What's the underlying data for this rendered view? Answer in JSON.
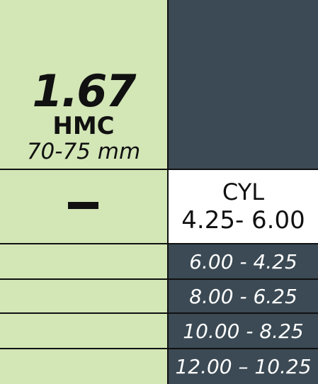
{
  "product": {
    "index": "1.67",
    "coating": "HMC",
    "diameter": "70-75 mm"
  },
  "table": {
    "header_label": "CYL",
    "header_range": "4.25- 6.00",
    "rows": [
      "6.00 - 4.25",
      "8.00 - 6.25",
      "10.00 - 8.25",
      "12.00 – 10.25"
    ]
  },
  "colors": {
    "green": "#d3e6b6",
    "dark": "#3b4a54",
    "line": "#111111"
  }
}
